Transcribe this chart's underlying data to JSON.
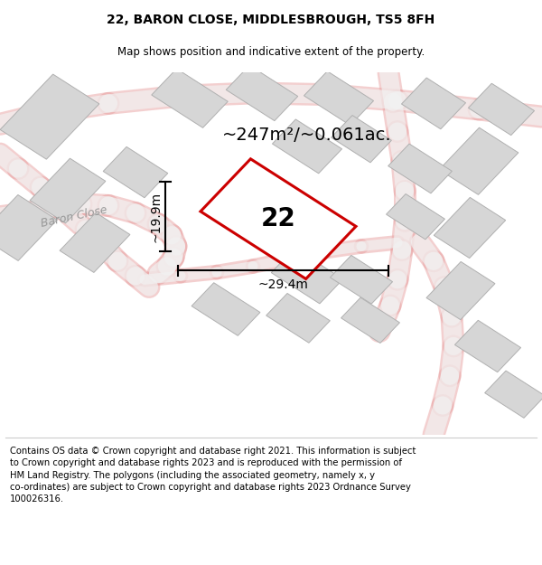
{
  "title": "22, BARON CLOSE, MIDDLESBROUGH, TS5 8FH",
  "subtitle": "Map shows position and indicative extent of the property.",
  "footer": "Contains OS data © Crown copyright and database right 2021. This information is subject to Crown copyright and database rights 2023 and is reproduced with the permission of HM Land Registry. The polygons (including the associated geometry, namely x, y co-ordinates) are subject to Crown copyright and database rights 2023 Ordnance Survey 100026316.",
  "area_label": "~247m²/~0.061ac.",
  "width_label": "~29.4m",
  "height_label": "~19.9m",
  "property_number": "22",
  "road_label": "Baron Close",
  "bg_color": "#f2f2f2",
  "building_fill": "#d6d6d6",
  "building_edge": "#b0b0b0",
  "road_fill": "#f2f2f2",
  "road_stroke": "#e8a0a0",
  "highlight_fill": "#ffffff",
  "highlight_edge": "#cc0000",
  "title_fontsize": 10,
  "subtitle_fontsize": 8.5,
  "footer_fontsize": 7.2,
  "label_fontsize": 14,
  "number_fontsize": 20,
  "dim_fontsize": 10,
  "road_label_fontsize": 9
}
